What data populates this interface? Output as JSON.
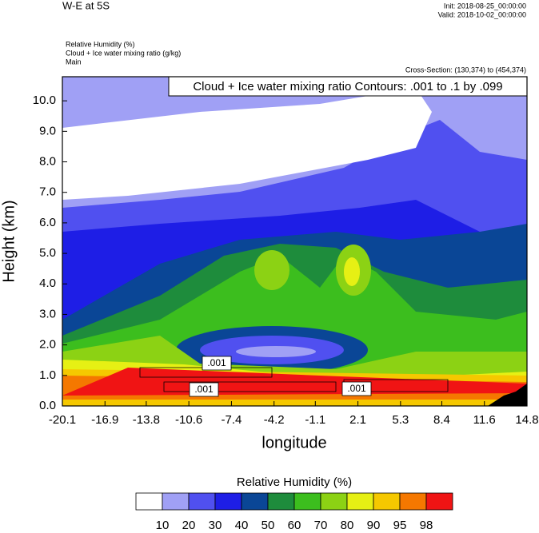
{
  "chart_data": {
    "type": "contour",
    "title": "W-E at 5S",
    "init": "Init: 2018-08-25_00:00:00",
    "valid": "Valid: 2018-10-02_00:00:00",
    "fields": [
      "Relative Humidity   (%)",
      "Cloud + Ice water mixing ratio   (g/kg)",
      "Main"
    ],
    "cross_section": "Cross-Section: (130,374) to (454,374)",
    "contour_info": "Cloud + Ice water mixing ratio Contours: .001 to .1 by .099",
    "contour_labels": [
      ".001",
      ".001",
      ".001"
    ],
    "xlabel": "longitude",
    "ylabel": "Height (km)",
    "xlim": [
      -20.1,
      14.8
    ],
    "xticks": [
      -20.1,
      -16.9,
      -13.8,
      -10.6,
      -7.4,
      -4.2,
      -1.1,
      2.1,
      5.3,
      8.4,
      11.6,
      14.8
    ],
    "ylim": [
      0,
      10.79
    ],
    "yticks": [
      {
        "value": 0,
        "label": "0.0"
      },
      {
        "value": 1,
        "label": "1.0"
      },
      {
        "value": 2,
        "label": "2.0"
      },
      {
        "value": 3,
        "label": "3.0"
      },
      {
        "value": 4,
        "label": "4.0"
      },
      {
        "value": 5,
        "label": "5.0"
      },
      {
        "value": 6,
        "label": "6.0"
      },
      {
        "value": 7,
        "label": "7.0"
      },
      {
        "value": 8,
        "label": "8.0"
      },
      {
        "value": 9,
        "label": "9.0"
      },
      {
        "value": 10,
        "label": "10.0"
      }
    ],
    "colorbar": {
      "title": "Relative Humidity  (%)",
      "levels": [
        10,
        20,
        30,
        40,
        50,
        60,
        70,
        80,
        90,
        95,
        98
      ],
      "colors": [
        "#ffffff",
        "#a0a0f5",
        "#5050f0",
        "#1e1ee6",
        "#0a4696",
        "#1e8c3c",
        "#3cbe1e",
        "#8cd214",
        "#e6f014",
        "#f5c800",
        "#f57800",
        "#f01414"
      ]
    }
  }
}
